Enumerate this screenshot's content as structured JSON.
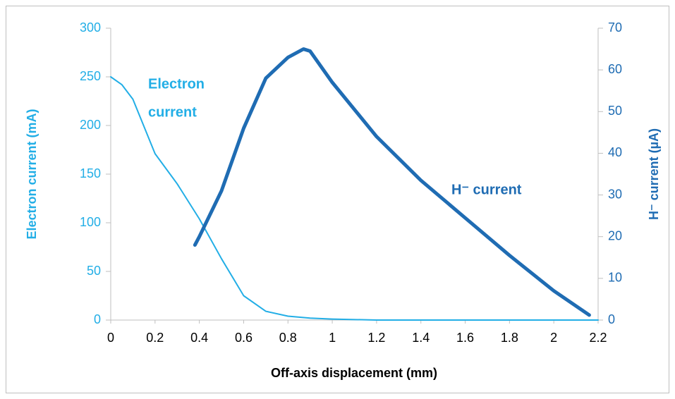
{
  "chart_data": {
    "type": "line",
    "x_label": "Off-axis displacement (mm)",
    "y_label": "Electron current (mA)",
    "y2_label": "H⁻ current (µA)",
    "annotations": [
      {
        "lines": [
          "Electron",
          "current"
        ]
      },
      {
        "lines": [
          "H⁻ current"
        ]
      }
    ],
    "xlim": [
      0,
      2.2
    ],
    "xticks": [
      0,
      0.2,
      0.4,
      0.6,
      0.8,
      1,
      1.2,
      1.4,
      1.6,
      1.8,
      2,
      2.2
    ],
    "ylim": [
      0,
      300
    ],
    "yticks": [
      0,
      50,
      100,
      150,
      200,
      250,
      300
    ],
    "y2lim": [
      0,
      70
    ],
    "y2ticks": [
      0,
      10,
      20,
      30,
      40,
      50,
      60,
      70
    ],
    "grid": false,
    "series": [
      {
        "name": "Electron current",
        "color": "#22aee6",
        "width": 2,
        "x": [
          0,
          0.05,
          0.1,
          0.2,
          0.3,
          0.4,
          0.5,
          0.6,
          0.7,
          0.8,
          0.9,
          1,
          1.2,
          1.4,
          1.6,
          1.8,
          2,
          2.2
        ],
        "values": [
          250,
          242,
          227,
          171,
          140,
          104,
          63,
          25,
          9,
          4,
          2,
          1,
          0,
          0,
          0,
          0,
          0,
          0
        ]
      },
      {
        "name": "H⁻ current",
        "color": "#1f6cb3",
        "width": 5,
        "axis": "y2",
        "x": [
          0.38,
          0.4,
          0.5,
          0.6,
          0.7,
          0.8,
          0.87,
          0.9,
          1,
          1.2,
          1.4,
          1.6,
          1.8,
          2,
          2.16
        ],
        "values": [
          18,
          20,
          31,
          46,
          58,
          63,
          65,
          64.5,
          57,
          44,
          33.5,
          24.5,
          15.5,
          7,
          1.2
        ]
      }
    ]
  }
}
